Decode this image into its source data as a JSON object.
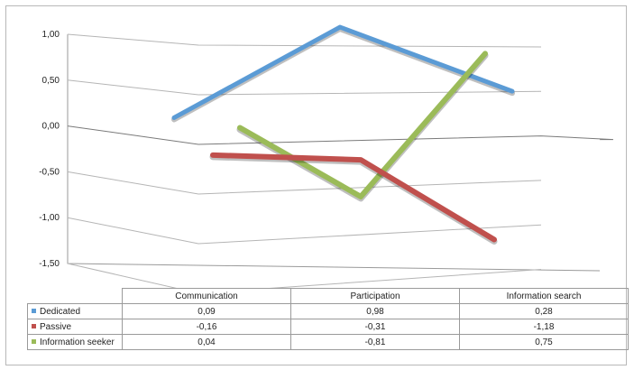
{
  "chart_data": {
    "type": "line",
    "categories": [
      "Communication",
      "Participation",
      "Information search"
    ],
    "series": [
      {
        "name": "Dedicated",
        "values": [
          0.09,
          0.98,
          0.28
        ],
        "color": "#5b9bd5"
      },
      {
        "name": "Passive",
        "values": [
          -0.16,
          -0.31,
          -1.18
        ],
        "color": "#c0504d"
      },
      {
        "name": "Information seeker",
        "values": [
          0.04,
          -0.81,
          0.75
        ],
        "color": "#9bbb59"
      }
    ],
    "table": [
      [
        "0,09",
        "0,98",
        "0,28"
      ],
      [
        "-0,16",
        "-0,31",
        "-1,18"
      ],
      [
        "0,04",
        "-0,81",
        "0,75"
      ]
    ],
    "y_ticks": [
      "1,00",
      "0,50",
      "0,00",
      "-0,50",
      "-1,00",
      "-1,50"
    ],
    "ylim": [
      -1.5,
      1.0
    ],
    "grid": true,
    "legend": "data-table",
    "title": "",
    "xlabel": "",
    "ylabel": ""
  }
}
